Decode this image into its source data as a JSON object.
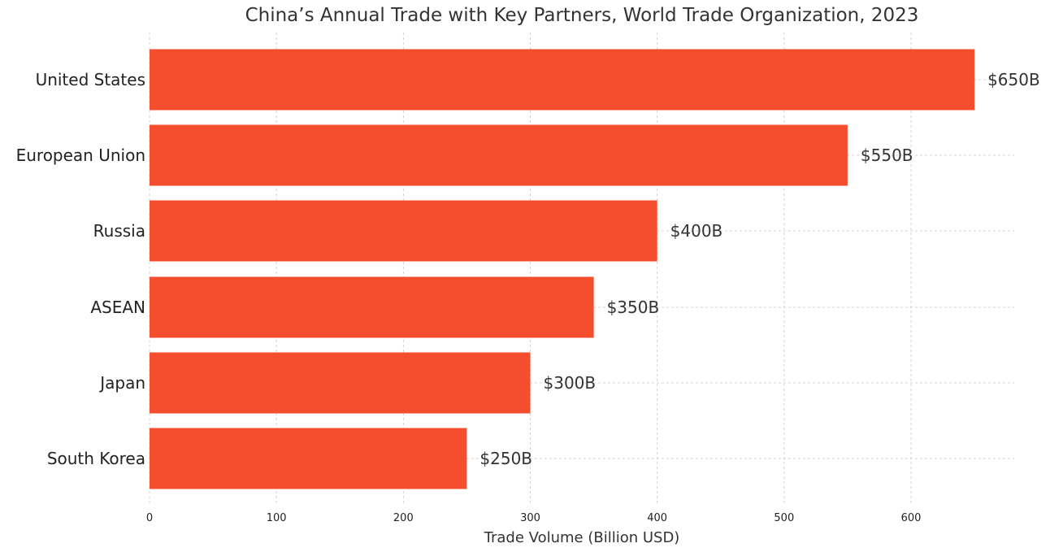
{
  "chart_data": {
    "type": "bar",
    "orientation": "horizontal",
    "title": "China’s Annual Trade with Key Partners, World Trade Organization, 2023",
    "xlabel": "Trade Volume (Billion USD)",
    "ylabel": "",
    "categories": [
      "United States",
      "European Union",
      "Russia",
      "ASEAN",
      "Japan",
      "South Korea"
    ],
    "values": [
      650,
      550,
      400,
      350,
      300,
      250
    ],
    "data_labels": [
      "$650B",
      "$550B",
      "$400B",
      "$350B",
      "$300B",
      "$250B"
    ],
    "xlim": [
      0,
      680
    ],
    "x_ticks": [
      0,
      100,
      200,
      300,
      400,
      500,
      600
    ],
    "x_tick_labels": [
      "0",
      "100",
      "200",
      "300",
      "400",
      "500",
      "600"
    ],
    "grid": true,
    "bar_color": "#f44e2e"
  }
}
